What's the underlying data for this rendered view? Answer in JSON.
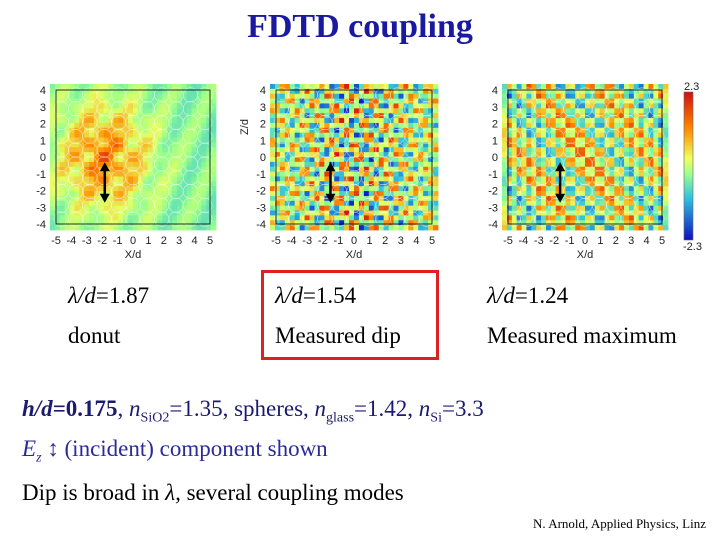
{
  "title": "FDTD coupling",
  "panels": [
    {
      "x_ticks": [
        "-5",
        "-4",
        "-3",
        "-2",
        "-1",
        "0",
        "1",
        "2",
        "3",
        "4",
        "5"
      ],
      "y_ticks": [
        "4",
        "3",
        "2",
        "1",
        "0",
        "-1",
        "-2",
        "-3",
        "-4"
      ],
      "xlabel": "X/d",
      "ylabel": "",
      "pattern": "donut",
      "ratio_var": "λ/d",
      "ratio_value": "=1.87",
      "label": "donut"
    },
    {
      "x_ticks": [
        "-5",
        "-4",
        "-3",
        "-2",
        "-1",
        "0",
        "1",
        "2",
        "3",
        "4",
        "5"
      ],
      "y_ticks": [
        "4",
        "3",
        "2",
        "1",
        "0",
        "-1",
        "-2",
        "-3",
        "-4"
      ],
      "xlabel": "X/d",
      "ylabel": "Z/d",
      "pattern": "dip",
      "ratio_var": "λ/d",
      "ratio_value": "=1.54",
      "label": "Measured dip"
    },
    {
      "x_ticks": [
        "-5",
        "-4",
        "-3",
        "-2",
        "-1",
        "0",
        "1",
        "2",
        "3",
        "4",
        "5"
      ],
      "y_ticks": [
        "4",
        "3",
        "2",
        "1",
        "0",
        "-1",
        "-2",
        "-3",
        "-4"
      ],
      "xlabel": "X/d",
      "ylabel": "",
      "pattern": "maximum",
      "ratio_var": "λ/d",
      "ratio_value": "=1.24",
      "label": "Measured maximum"
    }
  ],
  "colorbar": {
    "max": "2.3",
    "min": "-2.3"
  },
  "param_line": {
    "h_var": "h/d",
    "h_value": "=0.175",
    "sep": ", ",
    "n_var": "n",
    "n_sub": "SiO2",
    "n_value": "=1.35, spheres, ",
    "ng_var": "n",
    "ng_sub": "glass",
    "ng_value": "=1.42, ",
    "nsi_var": "n",
    "nsi_sub": "Si",
    "nsi_value": "=3.3"
  },
  "ez_line": {
    "var": "E",
    "sub": "z",
    "text": " ↕ (incident) component shown"
  },
  "dip_line": {
    "text": "Dip is broad in ",
    "var": "λ,",
    "rest": " several coupling modes"
  },
  "footer": "N. Arnold, Applied Physics, Linz",
  "colors": {
    "title": "#1a1aa0",
    "highlight": "#e02020",
    "param": "#1a1a70",
    "ez": "#2a2a9a"
  }
}
